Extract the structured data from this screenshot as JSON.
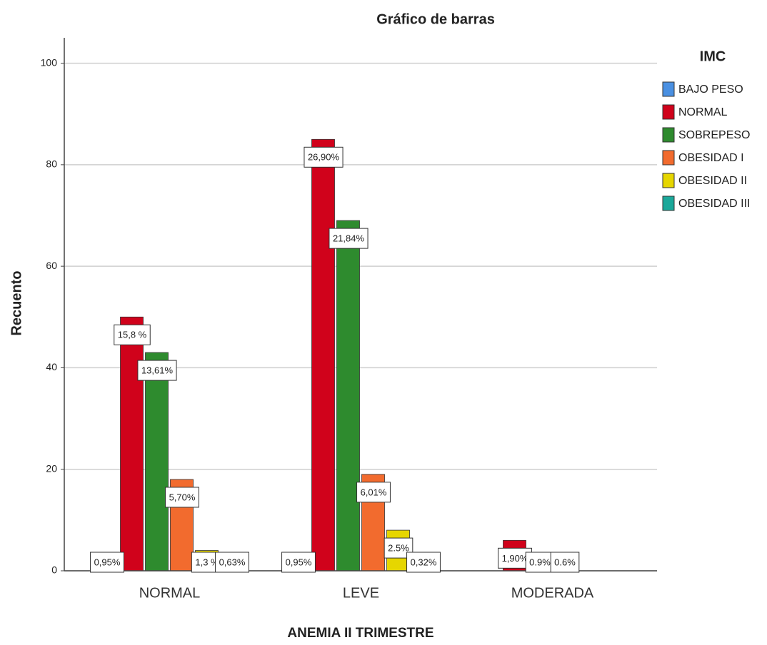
{
  "chart_data": {
    "type": "bar",
    "title": "Gráfico de barras",
    "x_label": "ANEMIA II TRIMESTRE",
    "y_label": "Recuento",
    "legend_title": "IMC",
    "categories": [
      "NORMAL",
      "LEVE",
      "MODERADA"
    ],
    "series": [
      {
        "name": "BAJO PESO",
        "color": "#4a90e2",
        "values": [
          3,
          3,
          0
        ],
        "value_labels": [
          "0,95%",
          "0,95%",
          null
        ]
      },
      {
        "name": "NORMAL",
        "color": "#d0021b",
        "values": [
          50,
          85,
          6
        ],
        "value_labels": [
          "15,8 %",
          "26,90%",
          "1,90%"
        ]
      },
      {
        "name": "SOBREPESO",
        "color": "#2e8b2e",
        "values": [
          43,
          69,
          3
        ],
        "value_labels": [
          "13,61%",
          "21,84%",
          "0.9%"
        ]
      },
      {
        "name": "OBESIDAD I",
        "color": "#f26b2e",
        "values": [
          18,
          19,
          2
        ],
        "value_labels": [
          "5,70%",
          "6,01%",
          "0.6%"
        ]
      },
      {
        "name": "OBESIDAD II",
        "color": "#e6d600",
        "values": [
          4,
          8,
          0
        ],
        "value_labels": [
          "1,3 %",
          "2.5%",
          null
        ]
      },
      {
        "name": "OBESIDAD III",
        "color": "#1aa89a",
        "values": [
          2,
          1,
          0
        ],
        "value_labels": [
          "0,63%",
          "0,32%",
          null
        ]
      }
    ],
    "ylim": [
      0,
      105
    ],
    "yticks": [
      0,
      20,
      40,
      60,
      80,
      100
    ],
    "grid": true,
    "legend": "right"
  }
}
